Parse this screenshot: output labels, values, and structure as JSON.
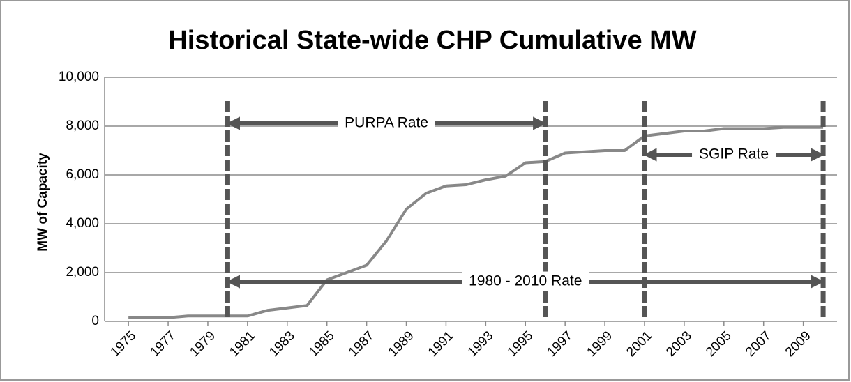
{
  "chart_data": {
    "type": "line",
    "title": "Historical State-wide CHP Cumulative MW",
    "y_label": "MW of Capacity",
    "x": [
      1975,
      1976,
      1977,
      1978,
      1979,
      1980,
      1981,
      1982,
      1983,
      1984,
      1985,
      1986,
      1987,
      1988,
      1989,
      1990,
      1991,
      1992,
      1993,
      1994,
      1995,
      1996,
      1997,
      1998,
      1999,
      2000,
      2001,
      2002,
      2003,
      2004,
      2005,
      2006,
      2007,
      2008,
      2009,
      2010
    ],
    "series": [
      {
        "name": "CHP Cumulative MW",
        "color": "#888888",
        "values": [
          150,
          150,
          150,
          220,
          220,
          220,
          220,
          450,
          550,
          650,
          1700,
          2000,
          2300,
          3300,
          4600,
          5250,
          5550,
          5600,
          5800,
          5950,
          6500,
          6550,
          6900,
          6950,
          7000,
          7000,
          7600,
          7700,
          7800,
          7800,
          7900,
          7900,
          7900,
          7950,
          7950,
          7950
        ]
      }
    ],
    "xlim": [
      1973.8,
      2010.7
    ],
    "xticks": [
      1975,
      1977,
      1979,
      1981,
      1983,
      1985,
      1987,
      1989,
      1991,
      1993,
      1995,
      1997,
      1999,
      2001,
      2003,
      2005,
      2007,
      2009
    ],
    "ylim": [
      0,
      10000
    ],
    "yticks": [
      {
        "value": 0,
        "label": "0"
      },
      {
        "value": 2000,
        "label": "2,000"
      },
      {
        "value": 4000,
        "label": "4,000"
      },
      {
        "value": 6000,
        "label": "6,000"
      },
      {
        "value": 8000,
        "label": "8,000"
      },
      {
        "value": 10000,
        "label": "10,000"
      }
    ],
    "grid": true,
    "vlines": [
      1980,
      1996,
      2001,
      2010
    ],
    "annotations": [
      {
        "text": "PURPA Rate",
        "from": 1980,
        "to": 1996
      },
      {
        "text": "SGIP Rate",
        "from": 2001,
        "to": 2010
      },
      {
        "text": "1980 - 2010 Rate",
        "from": 1980,
        "to": 2010
      }
    ]
  }
}
